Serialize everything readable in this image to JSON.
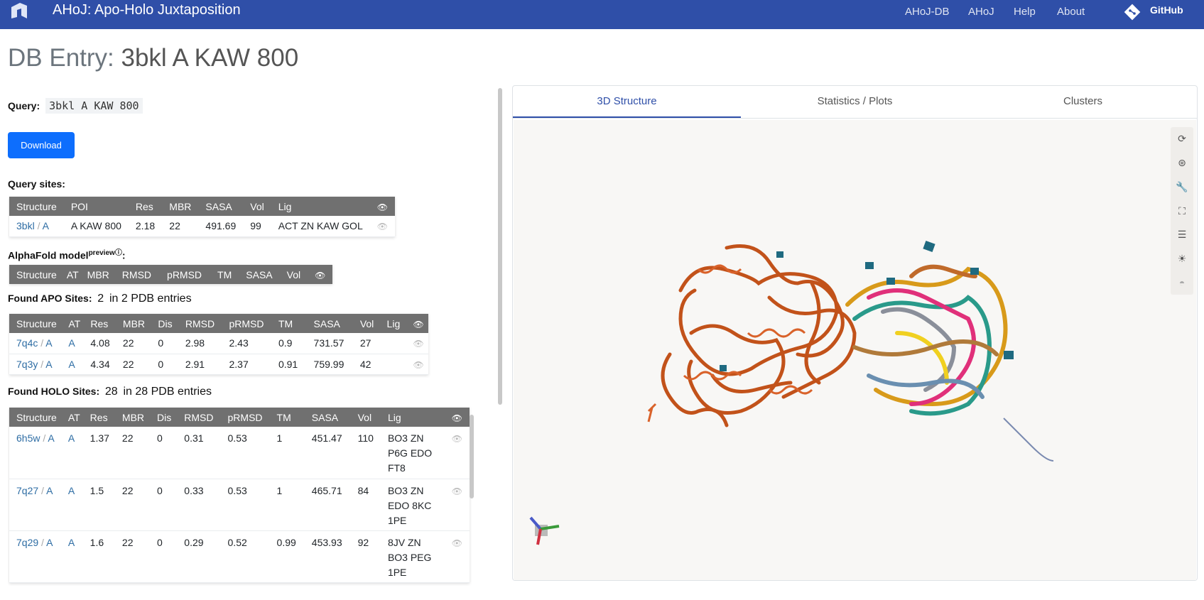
{
  "navbar": {
    "brand": "AHoJ: Apo-Holo Juxtaposition",
    "links": [
      "AHoJ-DB",
      "AHoJ",
      "Help",
      "About"
    ],
    "github": "GitHub"
  },
  "title": {
    "prefix": "DB Entry: ",
    "entry": "3bkl A KAW 800"
  },
  "query": {
    "label": "Query:",
    "value": "3bkl A KAW 800"
  },
  "download_label": "Download",
  "query_sites": {
    "label": "Query sites:",
    "headers": [
      "Structure",
      "POI",
      "Res",
      "MBR",
      "SASA",
      "Vol",
      "Lig"
    ],
    "rows": [
      {
        "pdb": "3bkl",
        "chain": "A",
        "poi": "A KAW 800",
        "res": "2.18",
        "mbr": "22",
        "sasa": "491.69",
        "vol": "99",
        "lig": "ACT ZN KAW GOL"
      }
    ]
  },
  "alphafold": {
    "label": "AlphaFold model",
    "sup": "preview",
    "info": "ⓘ",
    "colon": ":",
    "headers": [
      "Structure",
      "AT",
      "MBR",
      "RMSD",
      "pRMSD",
      "TM",
      "SASA",
      "Vol"
    ]
  },
  "apo": {
    "label": "Found APO Sites:",
    "count": "2",
    "suffix": "in 2 PDB entries",
    "headers": [
      "Structure",
      "AT",
      "Res",
      "MBR",
      "Dis",
      "RMSD",
      "pRMSD",
      "TM",
      "SASA",
      "Vol",
      "Lig"
    ],
    "rows": [
      {
        "pdb": "7q4c",
        "chain": "A",
        "at": "A",
        "res": "4.08",
        "mbr": "22",
        "dis": "0",
        "rmsd": "2.98",
        "prmsd": "2.43",
        "tm": "0.9",
        "sasa": "731.57",
        "vol": "27",
        "lig": ""
      },
      {
        "pdb": "7q3y",
        "chain": "A",
        "at": "A",
        "res": "4.34",
        "mbr": "22",
        "dis": "0",
        "rmsd": "2.91",
        "prmsd": "2.37",
        "tm": "0.91",
        "sasa": "759.99",
        "vol": "42",
        "lig": ""
      }
    ]
  },
  "holo": {
    "label": "Found HOLO Sites:",
    "count": "28",
    "suffix": "in 28 PDB entries",
    "headers": [
      "Structure",
      "AT",
      "Res",
      "MBR",
      "Dis",
      "RMSD",
      "pRMSD",
      "TM",
      "SASA",
      "Vol",
      "Lig"
    ],
    "rows": [
      {
        "pdb": "6h5w",
        "chain": "A",
        "at": "A",
        "res": "1.37",
        "mbr": "22",
        "dis": "0",
        "rmsd": "0.31",
        "prmsd": "0.53",
        "tm": "1",
        "sasa": "451.47",
        "vol": "110",
        "lig": [
          "BO3 ZN",
          "P6G EDO",
          "FT8"
        ]
      },
      {
        "pdb": "7q27",
        "chain": "A",
        "at": "A",
        "res": "1.5",
        "mbr": "22",
        "dis": "0",
        "rmsd": "0.33",
        "prmsd": "0.53",
        "tm": "1",
        "sasa": "465.71",
        "vol": "84",
        "lig": [
          "BO3 ZN",
          "EDO 8KC",
          "1PE"
        ]
      },
      {
        "pdb": "7q29",
        "chain": "A",
        "at": "A",
        "res": "1.6",
        "mbr": "22",
        "dis": "0",
        "rmsd": "0.29",
        "prmsd": "0.52",
        "tm": "0.99",
        "sasa": "453.93",
        "vol": "92",
        "lig": [
          "8JV ZN",
          "BO3 PEG",
          "1PE"
        ]
      }
    ]
  },
  "slash": "/",
  "eye_glyph": "👁",
  "tabs": [
    "3D Structure",
    "Statistics / Plots",
    "Clusters"
  ],
  "viewer_tools": [
    "reset-icon",
    "spin-icon",
    "wrench-icon",
    "fullscreen-icon",
    "settings-icon",
    "lighting-icon",
    "vr-icon"
  ],
  "colors": {
    "navbar": "#2f4fa8",
    "download": "#0d6efd",
    "table_header": "#707070",
    "protein_main": "#c2521a"
  }
}
